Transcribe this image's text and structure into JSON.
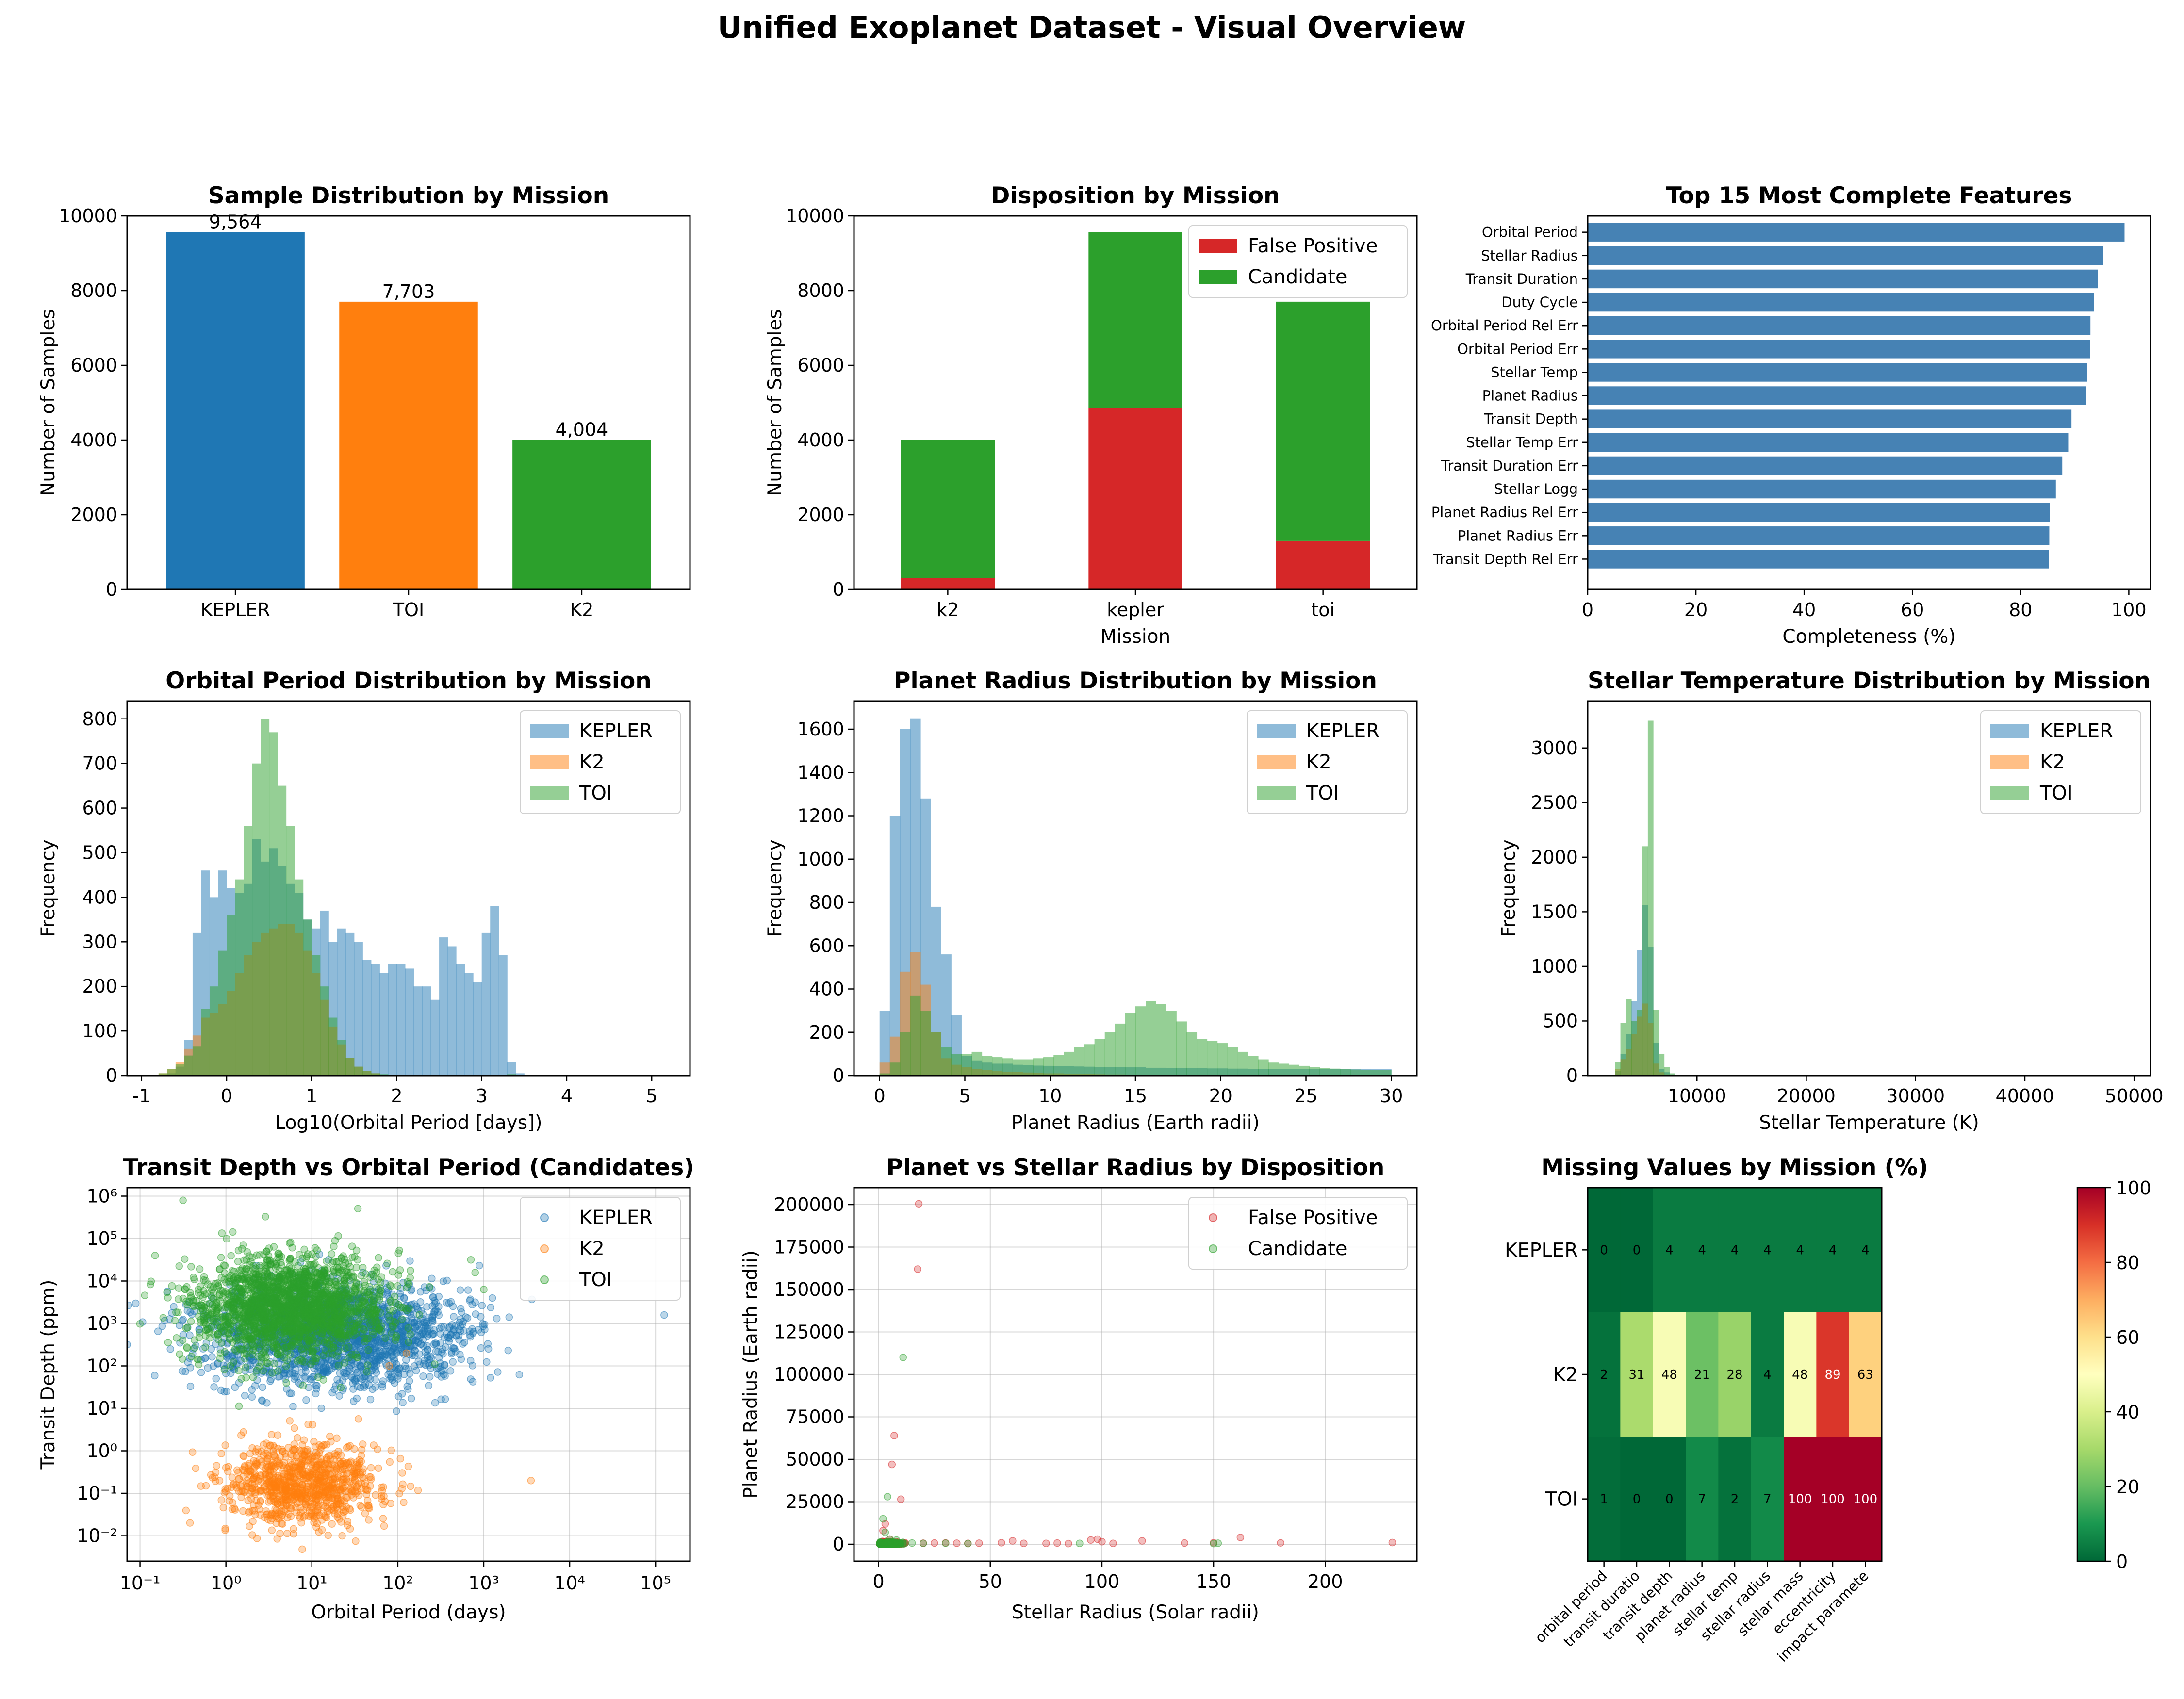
{
  "figure": {
    "title": "Unified Exoplanet Dataset - Visual Overview"
  },
  "colors": {
    "blue": "#1f77b4",
    "orange": "#ff7f0e",
    "green": "#2ca02c",
    "red": "#d62728",
    "steelblue": "#4682b4"
  },
  "chart_data": [
    {
      "id": "p1",
      "type": "bar",
      "title": "Sample Distribution by Mission",
      "xlabel": "",
      "ylabel": "Number of Samples",
      "categories": [
        "KEPLER",
        "TOI",
        "K2"
      ],
      "values": [
        9564,
        7703,
        4004
      ],
      "value_labels": [
        "9,564",
        "7,703",
        "4,004"
      ],
      "ylim": [
        0,
        10000
      ],
      "yticks": [
        0,
        2000,
        4000,
        6000,
        8000,
        10000
      ]
    },
    {
      "id": "p2",
      "type": "bar",
      "stacked": true,
      "title": "Disposition by Mission",
      "xlabel": "Mission",
      "ylabel": "Number of Samples",
      "categories": [
        "k2",
        "kepler",
        "toi"
      ],
      "series": [
        {
          "name": "False Positive",
          "values": [
            300,
            4850,
            1300
          ]
        },
        {
          "name": "Candidate",
          "values": [
            3704,
            4714,
            6403
          ]
        }
      ],
      "ylim": [
        0,
        10000
      ],
      "yticks": [
        0,
        2000,
        4000,
        6000,
        8000,
        10000
      ],
      "legend": "top-right"
    },
    {
      "id": "p3",
      "type": "bar",
      "orientation": "horizontal",
      "title": "Top 15 Most Complete Features",
      "xlabel": "Completeness (%)",
      "ylabel": "",
      "categories": [
        "Orbital Period",
        "Stellar Radius",
        "Transit Duration",
        "Duty Cycle",
        "Orbital Period Rel Err",
        "Orbital Period Err",
        "Stellar Temp",
        "Planet Radius",
        "Transit Depth",
        "Stellar Temp Err",
        "Transit Duration Err",
        "Stellar Logg",
        "Planet Radius Rel Err",
        "Planet Radius Err",
        "Transit Depth Rel Err"
      ],
      "values": [
        99.2,
        95.3,
        94.3,
        93.6,
        92.9,
        92.8,
        92.3,
        92.1,
        89.4,
        88.8,
        87.7,
        86.5,
        85.4,
        85.3,
        85.2
      ],
      "xlim": [
        0,
        104
      ],
      "xticks": [
        0,
        20,
        40,
        60,
        80,
        100
      ]
    },
    {
      "id": "p4",
      "type": "histogram",
      "title": "Orbital Period Distribution by Mission",
      "xlabel": "Log10(Orbital Period [days])",
      "ylabel": "Frequency",
      "xlim": [
        -1.17,
        5.45
      ],
      "ylim": [
        0,
        840
      ],
      "xticks": [
        -1,
        0,
        1,
        2,
        3,
        4,
        5
      ],
      "yticks": [
        0,
        100,
        200,
        300,
        400,
        500,
        600,
        700,
        800
      ],
      "legend": "top-right",
      "series": [
        {
          "name": "KEPLER",
          "bin_start": -0.8,
          "bin_width": 0.1,
          "counts": [
            0,
            5,
            20,
            80,
            320,
            460,
            400,
            460,
            420,
            410,
            430,
            530,
            480,
            510,
            470,
            430,
            410,
            350,
            330,
            370,
            300,
            330,
            320,
            300,
            260,
            250,
            230,
            250,
            250,
            240,
            200,
            200,
            170,
            310,
            290,
            250,
            230,
            210,
            320,
            380,
            270,
            30,
            5
          ]
        },
        {
          "name": "K2",
          "bin_start": -0.8,
          "bin_width": 0.1,
          "counts": [
            5,
            15,
            30,
            60,
            90,
            130,
            140,
            160,
            190,
            230,
            270,
            300,
            320,
            330,
            340,
            340,
            320,
            280,
            230,
            170,
            110,
            70,
            40,
            20,
            10,
            5
          ]
        },
        {
          "name": "TOI",
          "bin_start": -0.8,
          "bin_width": 0.1,
          "counts": [
            5,
            15,
            25,
            45,
            65,
            150,
            200,
            280,
            360,
            440,
            560,
            700,
            800,
            770,
            650,
            560,
            440,
            350,
            270,
            200,
            130,
            80,
            40,
            20,
            10,
            5,
            3,
            2,
            2,
            2,
            2,
            2,
            2,
            2,
            2,
            2,
            2,
            2,
            0,
            0,
            0,
            3,
            0,
            2,
            0,
            2,
            0,
            0,
            0,
            2
          ]
        }
      ]
    },
    {
      "id": "p5",
      "type": "histogram",
      "title": "Planet Radius Distribution by Mission",
      "xlabel": "Planet Radius (Earth radii)",
      "ylabel": "Frequency",
      "xlim": [
        -1.5,
        31.5
      ],
      "ylim": [
        0,
        1730
      ],
      "xticks": [
        0,
        5,
        10,
        15,
        20,
        25,
        30
      ],
      "yticks": [
        0,
        200,
        400,
        600,
        800,
        1000,
        1200,
        1400,
        1600
      ],
      "legend": "top-right",
      "series": [
        {
          "name": "KEPLER",
          "bin_start": 0,
          "bin_width": 0.6,
          "counts": [
            300,
            1200,
            1600,
            1650,
            1280,
            780,
            560,
            280,
            90,
            70,
            60,
            55,
            55,
            50,
            48,
            46,
            45,
            44,
            43,
            42,
            41,
            40,
            40,
            40,
            38,
            38,
            36,
            36,
            35,
            35,
            34,
            34,
            33,
            33,
            32,
            32,
            31,
            31,
            30,
            30,
            30,
            30,
            30,
            30,
            30,
            30,
            30,
            30,
            30,
            30
          ]
        },
        {
          "name": "K2",
          "bin_start": 0,
          "bin_width": 0.6,
          "counts": [
            60,
            180,
            480,
            570,
            420,
            200,
            80,
            50,
            40,
            30,
            25,
            20,
            18,
            16,
            14,
            12,
            10,
            10,
            9,
            8,
            7,
            6,
            5,
            5,
            4,
            4,
            3,
            3,
            2,
            2,
            2,
            2,
            2,
            2,
            2,
            2,
            2,
            2,
            2,
            2,
            2,
            2,
            2,
            2,
            2,
            2,
            2,
            2,
            2,
            2
          ]
        },
        {
          "name": "TOI",
          "bin_start": 0,
          "bin_width": 0.6,
          "counts": [
            10,
            60,
            200,
            370,
            300,
            200,
            130,
            100,
            100,
            110,
            90,
            85,
            80,
            75,
            75,
            80,
            85,
            95,
            110,
            130,
            145,
            170,
            200,
            240,
            290,
            320,
            345,
            330,
            300,
            250,
            200,
            170,
            160,
            150,
            130,
            110,
            90,
            75,
            60,
            55,
            50,
            45,
            40,
            35,
            32,
            30,
            28,
            27,
            25,
            25
          ]
        }
      ]
    },
    {
      "id": "p6",
      "type": "histogram",
      "title": "Stellar Temperature Distribution by Mission",
      "xlabel": "Stellar Temperature (K)",
      "ylabel": "Frequency",
      "xlim": [
        0,
        51500
      ],
      "ylim": [
        0,
        3430
      ],
      "xticks": [
        10000,
        20000,
        30000,
        40000,
        50000
      ],
      "yticks": [
        0,
        500,
        1000,
        1500,
        2000,
        2500,
        3000
      ],
      "legend": "top-right",
      "series": [
        {
          "name": "KEPLER",
          "bin_start": 2500,
          "bin_width": 500,
          "counts": [
            40,
            200,
            380,
            680,
            1150,
            1560,
            1180,
            300,
            60,
            30,
            10,
            5,
            3,
            2
          ]
        },
        {
          "name": "K2",
          "bin_start": 2500,
          "bin_width": 500,
          "counts": [
            60,
            150,
            240,
            380,
            540,
            660,
            480,
            110,
            30,
            10,
            5,
            2
          ]
        },
        {
          "name": "TOI",
          "bin_start": 2500,
          "bin_width": 500,
          "counts": [
            120,
            480,
            700,
            500,
            600,
            2100,
            3250,
            600,
            200,
            80,
            20,
            5,
            3,
            2,
            2,
            1,
            1,
            1,
            1,
            1,
            0,
            0,
            0,
            0,
            0,
            0,
            0,
            0,
            0,
            0,
            0,
            0,
            0,
            0,
            0,
            0,
            0,
            0,
            0,
            0,
            0,
            0,
            0,
            0,
            0,
            0,
            0,
            0,
            0,
            0,
            0,
            0,
            0,
            0,
            0,
            0,
            0,
            0,
            0,
            0,
            0,
            0,
            0,
            0,
            0,
            0,
            0,
            0,
            0,
            0,
            0,
            0,
            0,
            0,
            0,
            0,
            0,
            0,
            0,
            0,
            0,
            0,
            0,
            0,
            0,
            0,
            0,
            0,
            0,
            0,
            0,
            0,
            0,
            0,
            1
          ]
        }
      ]
    },
    {
      "id": "p7",
      "type": "scatter",
      "title": "Transit Depth vs Orbital Period (Candidates)",
      "xlabel": "Orbital Period (days)",
      "ylabel": "Transit Depth (ppm)",
      "xscale": "log",
      "yscale": "log",
      "xlim_log10": [
        -1.15,
        5.4
      ],
      "ylim_log10": [
        -2.6,
        6.2
      ],
      "xtick_labels": [
        "10⁻¹",
        "10⁰",
        "10¹",
        "10²",
        "10³",
        "10⁴",
        "10⁵"
      ],
      "ytick_labels": [
        "10⁻²",
        "10⁻¹",
        "10⁰",
        "10¹",
        "10²",
        "10³",
        "10⁴",
        "10⁵",
        "10⁶"
      ],
      "legend": "top-right",
      "grid": true,
      "series": [
        {
          "name": "KEPLER",
          "log10_x_center": 1.3,
          "log10_x_spread": 0.8,
          "log10_y_center": 2.7,
          "log10_y_spread": 0.6,
          "outliers": [
            [
              5.1,
              3.2
            ],
            [
              3.1,
              3.6
            ],
            [
              2.9,
              3.5
            ]
          ]
        },
        {
          "name": "K2",
          "log10_x_center": 0.9,
          "log10_x_spread": 0.45,
          "log10_y_center": -0.8,
          "log10_y_spread": 0.5,
          "outliers": [
            [
              3.55,
              -0.7
            ],
            [
              2.1,
              2.3
            ],
            [
              1.9,
              2.0
            ]
          ]
        },
        {
          "name": "TOI",
          "log10_x_center": 0.75,
          "log10_x_spread": 0.55,
          "log10_y_center": 3.4,
          "log10_y_spread": 0.6,
          "outliers": [
            [
              -0.5,
              5.9
            ],
            [
              2.9,
              4.2
            ],
            [
              3.0,
              3.8
            ],
            [
              2.85,
              4.5
            ]
          ]
        }
      ]
    },
    {
      "id": "p8",
      "type": "scatter",
      "title": "Planet vs Stellar Radius by Disposition",
      "xlabel": "Stellar Radius (Solar radii)",
      "ylabel": "Planet Radius (Earth radii)",
      "xlim": [
        -11,
        241
      ],
      "ylim": [
        -10000,
        210000
      ],
      "xticks": [
        0,
        50,
        100,
        150,
        200
      ],
      "yticks": [
        0,
        25000,
        50000,
        75000,
        100000,
        125000,
        150000,
        175000,
        200000
      ],
      "legend": "top-right",
      "grid": true,
      "series": [
        {
          "name": "False Positive",
          "points": [
            [
              18,
              200500
            ],
            [
              17.5,
              162000
            ],
            [
              7,
              64000
            ],
            [
              6,
              47000
            ],
            [
              10,
              26500
            ],
            [
              3,
              12000
            ],
            [
              2,
              8000
            ],
            [
              5,
              3000
            ],
            [
              12,
              800
            ],
            [
              20,
              600
            ],
            [
              25,
              700
            ],
            [
              30,
              800
            ],
            [
              35,
              600
            ],
            [
              40,
              500
            ],
            [
              45,
              600
            ],
            [
              55,
              900
            ],
            [
              60,
              2000
            ],
            [
              65,
              500
            ],
            [
              75,
              500
            ],
            [
              80,
              700
            ],
            [
              85,
              400
            ],
            [
              95,
              2500
            ],
            [
              100,
              1500
            ],
            [
              98,
              3000
            ],
            [
              105,
              500
            ],
            [
              118,
              2000
            ],
            [
              137,
              700
            ],
            [
              150,
              900
            ],
            [
              162,
              4000
            ],
            [
              180,
              800
            ],
            [
              230,
              1000
            ],
            [
              1,
              300
            ],
            [
              1.5,
              800
            ],
            [
              2.5,
              1200
            ],
            [
              4,
              1500
            ],
            [
              8,
              1500
            ]
          ]
        },
        {
          "name": "Candidate",
          "points": [
            [
              11,
              110000
            ],
            [
              4,
              28000
            ],
            [
              2,
              15000
            ],
            [
              3,
              7000
            ],
            [
              5,
              3000
            ],
            [
              8,
              2500
            ],
            [
              15,
              700
            ],
            [
              20,
              500
            ],
            [
              30,
              600
            ],
            [
              40,
              400
            ],
            [
              90,
              500
            ],
            [
              150,
              400
            ],
            [
              152,
              600
            ],
            [
              1,
              200
            ],
            [
              1.5,
              500
            ],
            [
              2.5,
              900
            ],
            [
              6,
              1200
            ],
            [
              10,
              800
            ]
          ]
        }
      ]
    },
    {
      "id": "p9",
      "type": "heatmap",
      "title": "Missing Values by Mission (%)",
      "rows": [
        "KEPLER",
        "K2",
        "TOI"
      ],
      "columns": [
        "orbital period",
        "transit duratio",
        "transit depth",
        "planet radius",
        "stellar temp",
        "stellar radius",
        "stellar mass",
        "eccentricity",
        "impact paramete"
      ],
      "values": [
        [
          0,
          0,
          4,
          4,
          4,
          4,
          4,
          4,
          4
        ],
        [
          2,
          31,
          48,
          21,
          28,
          4,
          48,
          89,
          63
        ],
        [
          1,
          0,
          0,
          7,
          2,
          7,
          100,
          100,
          100
        ]
      ],
      "colormap": "RdYlGn_r",
      "vmin": 0,
      "vmax": 100,
      "colorbar_ticks": [
        0,
        20,
        40,
        60,
        80,
        100
      ]
    }
  ]
}
